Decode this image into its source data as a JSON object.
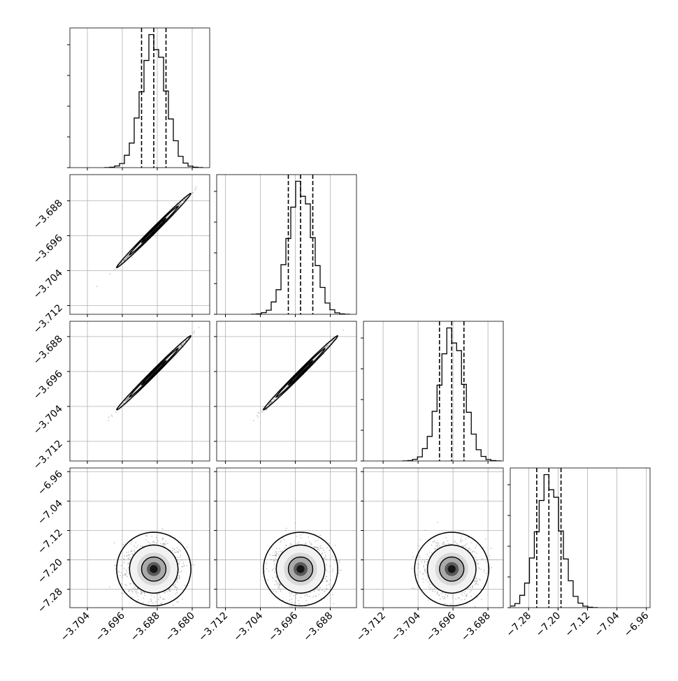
{
  "chart_data": {
    "type": "corner",
    "title": "",
    "dimensions": 4,
    "grid": true,
    "axis_ranges": [
      [
        -3.708,
        -3.676
      ],
      [
        -3.714,
        -3.682
      ],
      [
        -3.7165,
        -3.6845
      ],
      [
        -7.33,
        -6.95
      ]
    ],
    "ticks": [
      [
        "−3.704",
        "−3.696",
        "−3.688",
        "−3.680"
      ],
      [
        "−3.712",
        "−3.704",
        "−3.696",
        "−3.688"
      ],
      [
        "−3.712",
        "−3.704",
        "−3.696",
        "−3.688"
      ],
      [
        "−7.28",
        "−7.20",
        "−7.12",
        "−7.04",
        "−6.96"
      ]
    ],
    "tick_values": [
      [
        -3.704,
        -3.696,
        -3.688,
        -3.68
      ],
      [
        -3.712,
        -3.704,
        -3.696,
        -3.688
      ],
      [
        -3.712,
        -3.704,
        -3.696,
        -3.688
      ],
      [
        -7.28,
        -7.2,
        -7.12,
        -7.04,
        -6.96
      ]
    ],
    "distributions": [
      {
        "mean": -3.6888,
        "sd": 0.0028,
        "quantiles": [
          -3.6916,
          -3.6888,
          -3.686
        ]
      },
      {
        "mean": -3.6948,
        "sd": 0.0028,
        "quantiles": [
          -3.6976,
          -3.6948,
          -3.692
        ]
      },
      {
        "mean": -3.6963,
        "sd": 0.0028,
        "quantiles": [
          -3.6991,
          -3.6963,
          -3.6935
        ]
      },
      {
        "mean": -7.225,
        "sd": 0.033,
        "quantiles": [
          -7.258,
          -7.225,
          -7.192
        ]
      }
    ],
    "correlations": [
      [
        1.0,
        0.995,
        0.995,
        0.0
      ],
      [
        0.995,
        1.0,
        0.995,
        0.0
      ],
      [
        0.995,
        0.995,
        1.0,
        0.0
      ],
      [
        0.0,
        0.0,
        0.0,
        1.0
      ]
    ],
    "histogram_bins": 20,
    "colors": {
      "line": "#000000",
      "grid": "#b0b0b0",
      "points": "#808080"
    }
  }
}
